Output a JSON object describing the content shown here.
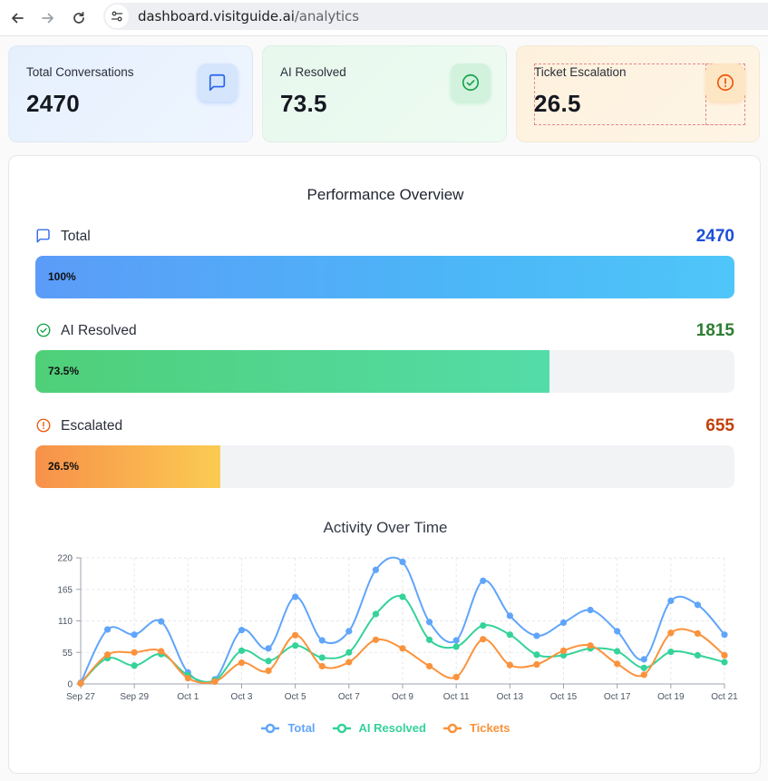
{
  "browser": {
    "url_host": "dashboard.visitguide.ai",
    "url_path": "/analytics"
  },
  "stats": [
    {
      "label": "Total Conversations",
      "value": "2470",
      "icon": "message-square-icon",
      "color": "#2563eb"
    },
    {
      "label": "AI Resolved",
      "value": "73.5",
      "icon": "check-circle-icon",
      "color": "#16a34a"
    },
    {
      "label": "Ticket Escalation",
      "value": "26.5",
      "icon": "alert-circle-icon",
      "color": "#ea580c"
    }
  ],
  "performance": {
    "title": "Performance Overview",
    "metrics": [
      {
        "label": "Total",
        "value": "2470",
        "percent_label": "100%",
        "percent": 100,
        "icon": "message-square-icon",
        "color": "#1d4ed8"
      },
      {
        "label": "AI Resolved",
        "value": "1815",
        "percent_label": "73.5%",
        "percent": 73.5,
        "icon": "check-circle-icon",
        "color": "#2e7d32"
      },
      {
        "label": "Escalated",
        "value": "655",
        "percent_label": "26.5%",
        "percent": 26.5,
        "icon": "alert-circle-icon",
        "color": "#c2410c"
      }
    ]
  },
  "chart_data": {
    "type": "line",
    "title": "Activity Over Time",
    "xlabel": "",
    "ylabel": "",
    "ylim": [
      0,
      220
    ],
    "yticks": [
      0,
      55,
      110,
      165,
      220
    ],
    "x": [
      "Sep 27",
      "Sep 28",
      "Sep 29",
      "Sep 30",
      "Oct 1",
      "Oct 2",
      "Oct 3",
      "Oct 4",
      "Oct 5",
      "Oct 6",
      "Oct 7",
      "Oct 8",
      "Oct 9",
      "Oct 10",
      "Oct 11",
      "Oct 12",
      "Oct 13",
      "Oct 14",
      "Oct 15",
      "Oct 16",
      "Oct 17",
      "Oct 18",
      "Oct 19",
      "Oct 20",
      "Oct 21"
    ],
    "xtick_labels": [
      "Sep 27",
      "Sep 29",
      "Oct 1",
      "Oct 3",
      "Oct 5",
      "Oct 7",
      "Oct 9",
      "Oct 11",
      "Oct 13",
      "Oct 15",
      "Oct 17",
      "Oct 19",
      "Oct 21"
    ],
    "grid": true,
    "legend_position": "bottom",
    "series": [
      {
        "name": "Total",
        "color": "#60a5fa",
        "values": [
          2,
          95,
          86,
          109,
          20,
          8,
          94,
          62,
          152,
          76,
          92,
          199,
          213,
          108,
          76,
          180,
          119,
          84,
          107,
          129,
          92,
          43,
          145,
          138,
          86
        ]
      },
      {
        "name": "AI Resolved",
        "color": "#34d399",
        "values": [
          1,
          45,
          32,
          52,
          15,
          6,
          58,
          40,
          67,
          46,
          55,
          122,
          152,
          77,
          65,
          102,
          86,
          51,
          50,
          62,
          57,
          28,
          56,
          50,
          38
        ]
      },
      {
        "name": "Tickets",
        "color": "#fb923c",
        "values": [
          1,
          51,
          55,
          57,
          10,
          4,
          37,
          23,
          85,
          31,
          38,
          77,
          62,
          31,
          12,
          78,
          33,
          34,
          58,
          67,
          35,
          16,
          89,
          88,
          50
        ]
      }
    ]
  }
}
